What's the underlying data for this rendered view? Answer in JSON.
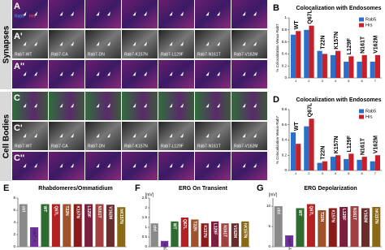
{
  "micrographs": {
    "sections": [
      "Synapses",
      "Cell Bodies"
    ],
    "rows": [
      "A",
      "A'",
      "A''",
      "C",
      "C'",
      "C''"
    ],
    "columns": [
      "Rab7-WT",
      "Rab7-CA",
      "Rab7-DN",
      "Rab7-K157N",
      "Rab7-L129F",
      "Rab7-N161T",
      "Rab7-V162M"
    ],
    "stain_labels": [
      "Rab5",
      "Hrs"
    ]
  },
  "chart_data": [
    {
      "type": "bar",
      "panel": "B",
      "title": "Colocalization with Endosomes",
      "ylabel": "% Colocalization Venus-Rab7",
      "categories": [
        "1",
        "2",
        "3",
        "4",
        "5",
        "6",
        "7"
      ],
      "bar_labels": [
        "WT",
        "Q67L",
        "T22N",
        "K157N",
        "L129F",
        "N161T",
        "V162M"
      ],
      "series": [
        {
          "name": "Rab5",
          "color": "#2a6fc9",
          "values": [
            0.72,
            0.8,
            0.45,
            0.38,
            0.27,
            0.27,
            0.27
          ]
        },
        {
          "name": "Hrs",
          "color": "#c8202a",
          "values": [
            0.78,
            0.87,
            0.4,
            0.45,
            0.36,
            0.38,
            0.38
          ]
        }
      ],
      "ylim": [
        0,
        1
      ],
      "yticks": [
        0,
        0.2,
        0.4,
        0.6,
        0.8,
        1
      ],
      "legend": "upper right"
    },
    {
      "type": "bar",
      "panel": "D",
      "title": "Colocalization with Endosomes",
      "ylabel": "% Colocalization Venus-Rab7",
      "categories": [
        "1",
        "2",
        "3",
        "4",
        "5",
        "6",
        "7"
      ],
      "bar_labels": [
        "WT",
        "Q67L",
        "T22N",
        "K157N",
        "L129F",
        "N161T",
        "V162M"
      ],
      "series": [
        {
          "name": "Rab5",
          "color": "#2a6fc9",
          "values": [
            0.5,
            0.58,
            0.1,
            0.18,
            0.15,
            0.14,
            0.12
          ]
        },
        {
          "name": "Hrs",
          "color": "#c8202a",
          "values": [
            0.35,
            0.68,
            0.12,
            0.2,
            0.22,
            0.18,
            0.2
          ]
        }
      ],
      "ylim": [
        0,
        0.8
      ],
      "yticks": [
        0,
        0.2,
        0.4,
        0.6,
        0.8
      ],
      "legend": "upper right"
    },
    {
      "type": "bar",
      "panel": "E",
      "title": "Rhabdomeres/Ommatidium",
      "categories": [
        "ctrl",
        "rab7 -/-",
        "WT",
        "Q67L",
        "T22N",
        "K157N",
        "L129F",
        "N161T",
        "V162M",
        "hK157N"
      ],
      "values": [
        7,
        3.2,
        7,
        7,
        7,
        7,
        7,
        7,
        6.9,
        6.5
      ],
      "colors": [
        "#8a8a8a",
        "#7030a0",
        "#2e6b2e",
        "#b22222",
        "#a0522d",
        "#8b1a1a",
        "#7a1f3d",
        "#a04040",
        "#6b2b2b",
        "#8b6914"
      ],
      "ylim": [
        0,
        8
      ],
      "yticks": [
        0,
        2,
        4,
        6,
        8
      ]
    },
    {
      "type": "bar",
      "panel": "F",
      "title": "ERG On Transient",
      "ylabel": "[mV]",
      "categories": [
        "ctrl",
        "rab7 -/-",
        "WT",
        "Q67L",
        "T22N",
        "K157N",
        "L129F",
        "N161T",
        "V162M",
        "hK157N"
      ],
      "values": [
        1.2,
        0.3,
        1.3,
        1.5,
        1.4,
        1.2,
        1.3,
        1.2,
        1.2,
        1.3
      ],
      "colors": [
        "#8a8a8a",
        "#7030a0",
        "#2e6b2e",
        "#b22222",
        "#a0522d",
        "#8b1a1a",
        "#7a1f3d",
        "#a04040",
        "#6b2b2b",
        "#8b6914"
      ],
      "ylim": [
        0,
        2.5
      ],
      "yticks": [
        0,
        0.5,
        1,
        1.5,
        2,
        2.5
      ]
    },
    {
      "type": "bar",
      "panel": "G",
      "title": "ERG Depolarization",
      "ylabel": "[mV]",
      "categories": [
        "ctrl",
        "rab7 -/-",
        "WT",
        "Q67L",
        "T22N",
        "K157N",
        "L129F",
        "N161T",
        "V162M",
        "hK157N"
      ],
      "values": [
        10,
        2.8,
        9.5,
        10.5,
        9,
        9.5,
        9.8,
        10,
        9.5,
        9.8
      ],
      "colors": [
        "#8a8a8a",
        "#7030a0",
        "#2e6b2e",
        "#b22222",
        "#a0522d",
        "#8b1a1a",
        "#7a1f3d",
        "#a04040",
        "#6b2b2b",
        "#8b6914"
      ],
      "ylim": [
        0,
        12
      ],
      "yticks": [
        0,
        5,
        10
      ]
    }
  ]
}
